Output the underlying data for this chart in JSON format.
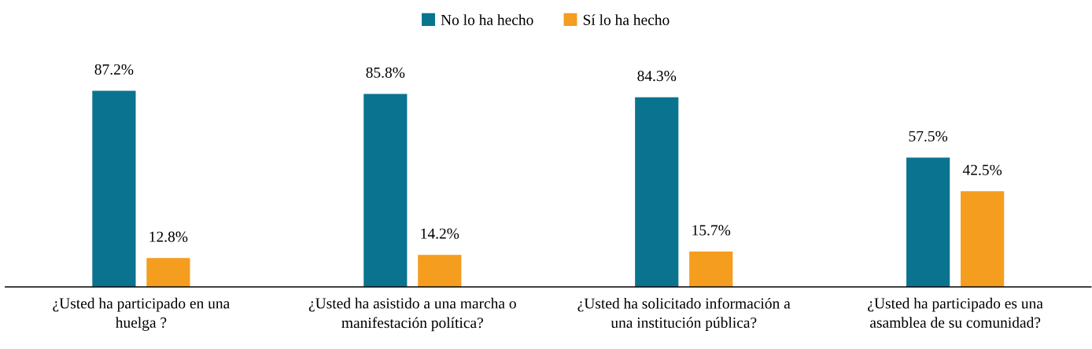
{
  "chart_data": {
    "type": "bar",
    "categories": [
      "¿Usted ha participado en una\nhuelga ?",
      "¿Usted ha asistido a una marcha o\nmanifestación política?",
      "¿Usted ha solicitado información a\nuna institución pública?",
      "¿Usted ha participado es una\nasamblea de su comunidad?"
    ],
    "series": [
      {
        "name": "No lo ha hecho",
        "color": "#0a7490",
        "values": [
          87.2,
          85.8,
          84.3,
          57.5
        ],
        "value_labels": [
          "87.2%",
          "85.8%",
          "84.3%",
          "57.5%"
        ]
      },
      {
        "name": "Sí lo ha hecho",
        "color": "#f59d1e",
        "values": [
          12.8,
          14.2,
          15.7,
          42.5
        ],
        "value_labels": [
          "12.8%",
          "14.2%",
          "15.7%",
          "42.5%"
        ]
      }
    ],
    "legend": "top"
  }
}
